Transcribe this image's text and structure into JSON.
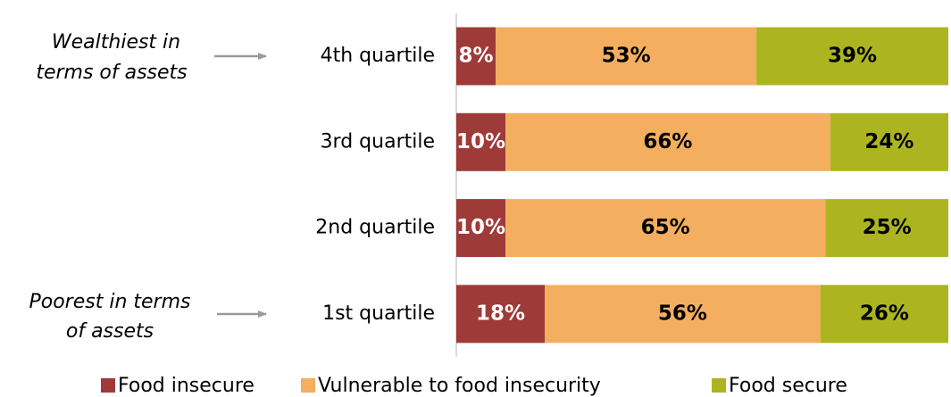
{
  "chart_data": {
    "type": "stacked_bar",
    "orientation": "horizontal",
    "categories": [
      "4th quartile",
      "3rd quartile",
      "2nd quartile",
      "1st quartile"
    ],
    "xlim": [
      0,
      100
    ],
    "series": [
      {
        "name": "Food insecure",
        "color": "#9e3a38",
        "label_color": "#ffffff",
        "values": [
          8,
          10,
          10,
          18
        ],
        "value_labels": [
          "8%",
          "10%",
          "10%",
          "18%"
        ]
      },
      {
        "name": "Vulnerable to food insecurity",
        "color": "#f3ae5f",
        "label_color": "#000000",
        "values": [
          53,
          66,
          65,
          56
        ],
        "value_labels": [
          "53%",
          "66%",
          "65%",
          "56%"
        ]
      },
      {
        "name": "Food secure",
        "color": "#acb520",
        "label_color": "#000000",
        "values": [
          39,
          24,
          25,
          26
        ],
        "value_labels": [
          "39%",
          "24%",
          "25%",
          "26%"
        ]
      }
    ],
    "annotations": [
      {
        "lines": [
          "Wealthiest in",
          "terms of assets"
        ]
      },
      {
        "lines": [
          "Poorest in terms",
          "of assets"
        ]
      }
    ],
    "legend": "bottom"
  }
}
